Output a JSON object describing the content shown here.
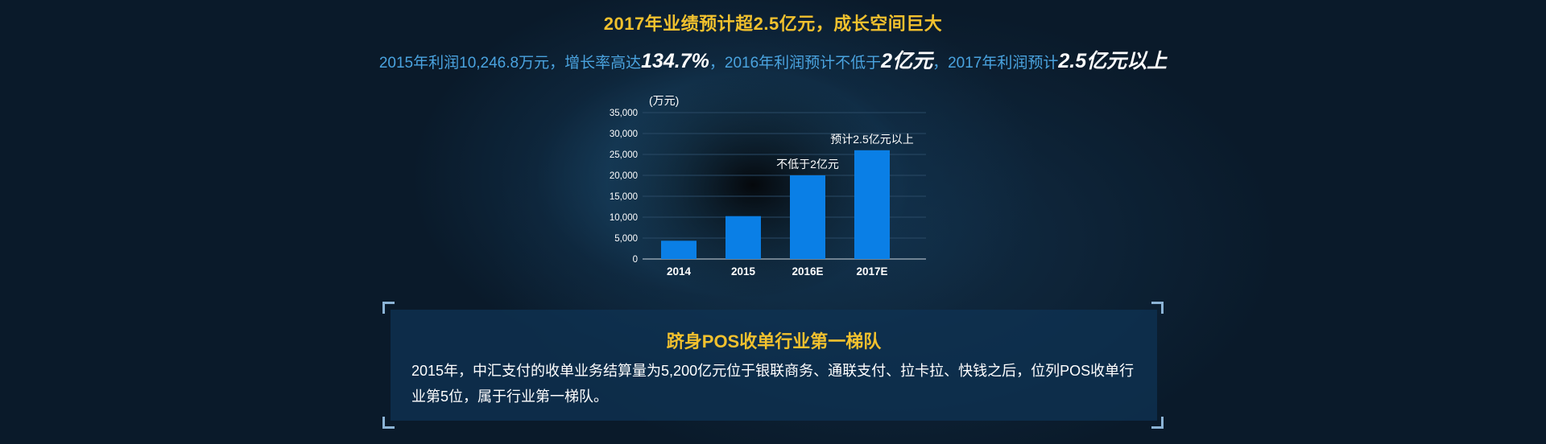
{
  "header": {
    "title": "2017年业绩预计超2.5亿元，成长空间巨大",
    "subtitle": {
      "part1": "2015年利润10,246.8万元，增长率高达",
      "growth_rate": "134.7%",
      "part2": "，2016年利润预计不低于",
      "profit_2016": "2亿元",
      "part3": "，2017年利润预计",
      "profit_2017": "2.5亿元以上"
    }
  },
  "chart_data": {
    "type": "bar",
    "unit_label": "(万元)",
    "categories": [
      "2014",
      "2015",
      "2016E",
      "2017E"
    ],
    "values": [
      4363,
      10247,
      20000,
      26000
    ],
    "ylim": [
      0,
      35000
    ],
    "yticks": [
      0,
      5000,
      10000,
      15000,
      20000,
      25000,
      30000,
      35000
    ],
    "ytick_labels": [
      "0",
      "5,000",
      "10,000",
      "15,000",
      "20,000",
      "25,000",
      "30,000",
      "35,000"
    ],
    "annotations": [
      {
        "category": "2016E",
        "text": "不低于2亿元"
      },
      {
        "category": "2017E",
        "text": "预计2.5亿元以上"
      }
    ],
    "grid": true,
    "colors": {
      "bar": "#0a7fe6",
      "text": "#ffffff",
      "grid": "#2a4a66",
      "axis": "#cfd8e0"
    }
  },
  "info_box": {
    "title": "跻身POS收单行业第一梯队",
    "text": "2015年，中汇支付的收单业务结算量为5,200亿元位于银联商务、通联支付、拉卡拉、快钱之后，位列POS收单行业第5位，属于行业第一梯队。"
  },
  "colors": {
    "accent": "#f2c12e",
    "highlight_blue": "#4aa3df",
    "panel": "#0e3252"
  }
}
